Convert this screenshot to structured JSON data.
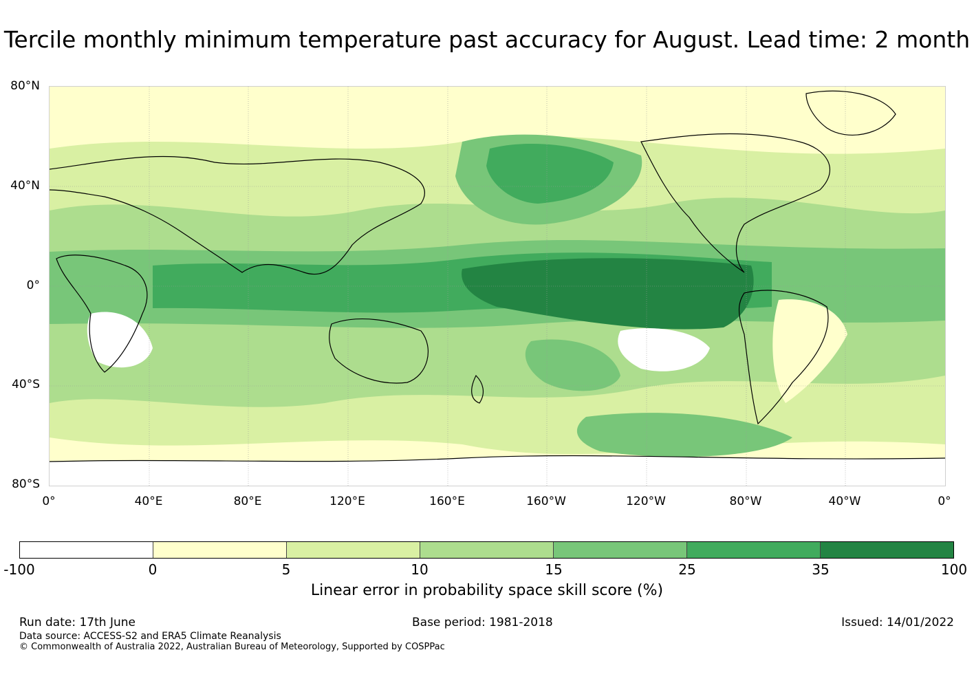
{
  "title": "Tercile monthly minimum temperature past accuracy for August. Lead time: 2 month",
  "map": {
    "lat_labels": [
      "80°N",
      "40°N",
      "0°",
      "40°S",
      "80°S"
    ],
    "lon_labels": [
      "0°",
      "40°E",
      "80°E",
      "120°E",
      "160°E",
      "160°W",
      "120°W",
      "80°W",
      "40°W",
      "0°"
    ]
  },
  "colorbar": {
    "ticks": [
      "-100",
      "0",
      "5",
      "10",
      "15",
      "25",
      "35",
      "100"
    ],
    "colors": [
      "#ffffff",
      "#ffffcc",
      "#d9f0a3",
      "#addd8e",
      "#78c679",
      "#41ab5d",
      "#238443"
    ],
    "label": "Linear error in probability space skill score (%)"
  },
  "footer": {
    "run_date": "Run date: 17th June",
    "base_period": "Base period: 1981-2018",
    "issued": "Issued: 14/01/2022",
    "data_source": "Data source: ACCESS-S2 and ERA5 Climate Reanalysis",
    "copyright": "© Commonwealth of Australia 2022, Australian Bureau of Meteorology, Supported by COSPPac"
  }
}
